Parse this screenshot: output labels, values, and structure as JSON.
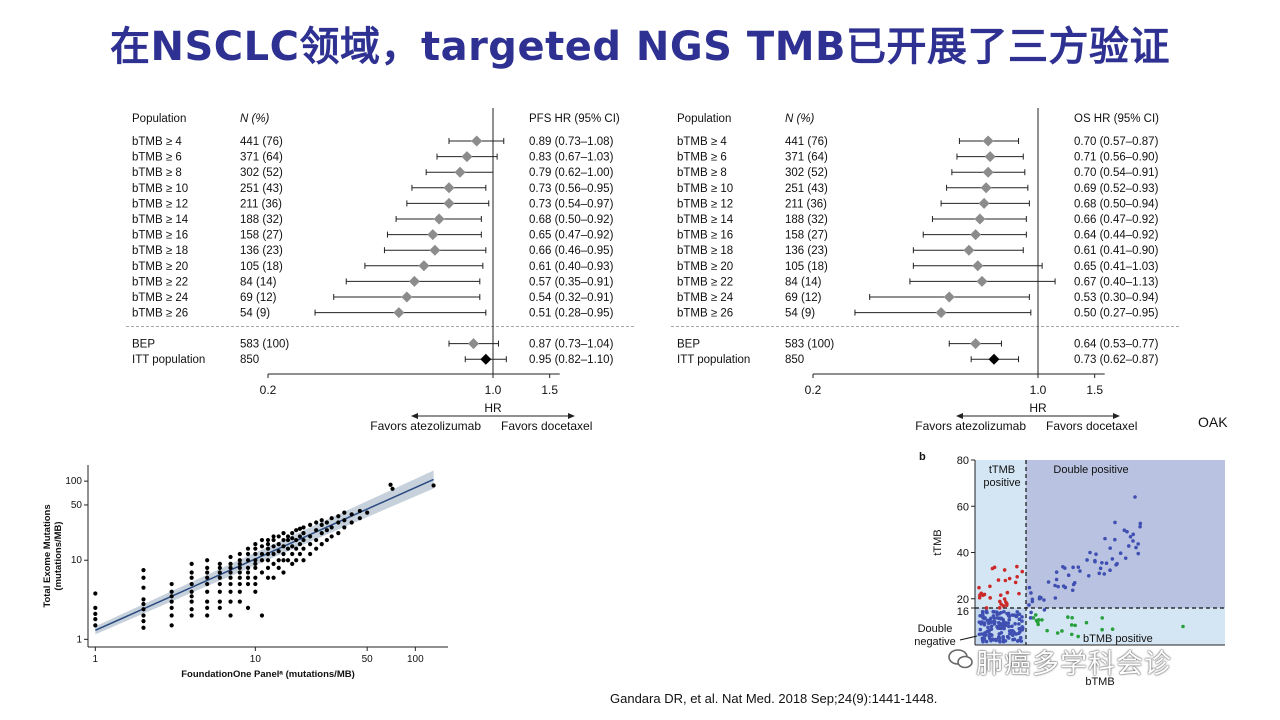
{
  "title": "在NSCLC领域，targeted NGS TMB已开展了三方验证",
  "forest_pfs": {
    "col_population": "Population",
    "col_n": "N (%)",
    "col_hr": "PFS HR (95% CI)",
    "rows": [
      {
        "label": "bTMB ≥ 4",
        "n": "441 (76)",
        "hr_text": "0.89 (0.73–1.08)",
        "hr": 0.89,
        "lo": 0.73,
        "hi": 1.08
      },
      {
        "label": "bTMB ≥ 6",
        "n": "371 (64)",
        "hr_text": "0.83 (0.67–1.03)",
        "hr": 0.83,
        "lo": 0.67,
        "hi": 1.03
      },
      {
        "label": "bTMB ≥ 8",
        "n": "302 (52)",
        "hr_text": "0.79 (0.62–1.00)",
        "hr": 0.79,
        "lo": 0.62,
        "hi": 1.0
      },
      {
        "label": "bTMB ≥ 10",
        "n": "251 (43)",
        "hr_text": "0.73 (0.56–0.95)",
        "hr": 0.73,
        "lo": 0.56,
        "hi": 0.95
      },
      {
        "label": "bTMB ≥ 12",
        "n": "211 (36)",
        "hr_text": "0.73 (0.54–0.97)",
        "hr": 0.73,
        "lo": 0.54,
        "hi": 0.97
      },
      {
        "label": "bTMB ≥ 14",
        "n": "188 (32)",
        "hr_text": "0.68 (0.50–0.92)",
        "hr": 0.68,
        "lo": 0.5,
        "hi": 0.92
      },
      {
        "label": "bTMB ≥ 16",
        "n": "158 (27)",
        "hr_text": "0.65 (0.47–0.92)",
        "hr": 0.65,
        "lo": 0.47,
        "hi": 0.92
      },
      {
        "label": "bTMB ≥ 18",
        "n": "136 (23)",
        "hr_text": "0.66 (0.46–0.95)",
        "hr": 0.66,
        "lo": 0.46,
        "hi": 0.95
      },
      {
        "label": "bTMB ≥ 20",
        "n": "105 (18)",
        "hr_text": "0.61 (0.40–0.93)",
        "hr": 0.61,
        "lo": 0.4,
        "hi": 0.93
      },
      {
        "label": "bTMB ≥ 22",
        "n": "84 (14)",
        "hr_text": "0.57 (0.35–0.91)",
        "hr": 0.57,
        "lo": 0.35,
        "hi": 0.91
      },
      {
        "label": "bTMB ≥ 24",
        "n": "69 (12)",
        "hr_text": "0.54 (0.32–0.91)",
        "hr": 0.54,
        "lo": 0.32,
        "hi": 0.91
      },
      {
        "label": "bTMB ≥ 26",
        "n": "54 (9)",
        "hr_text": "0.51 (0.28–0.95)",
        "hr": 0.51,
        "lo": 0.28,
        "hi": 0.95
      }
    ],
    "summary": [
      {
        "label": "BEP",
        "n": "583 (100)",
        "hr_text": "0.87 (0.73–1.04)",
        "hr": 0.87,
        "lo": 0.73,
        "hi": 1.04,
        "color": "#8c8c8c"
      },
      {
        "label": "ITT population",
        "n": "850",
        "hr_text": "0.95 (0.82–1.10)",
        "hr": 0.95,
        "lo": 0.82,
        "hi": 1.1,
        "color": "#000000"
      }
    ],
    "axis_ticks": [
      "0.2",
      "1.0",
      "1.5"
    ],
    "axis_label": "HR",
    "favors_left": "Favors atezolizumab",
    "favors_right": "Favors docetaxel"
  },
  "forest_os": {
    "col_population": "Population",
    "col_n": "N (%)",
    "col_hr": "OS HR (95% CI)",
    "rows": [
      {
        "label": "bTMB ≥ 4",
        "n": "441 (76)",
        "hr_text": "0.70 (0.57–0.87)",
        "hr": 0.7,
        "lo": 0.57,
        "hi": 0.87
      },
      {
        "label": "bTMB ≥ 6",
        "n": "371 (64)",
        "hr_text": "0.71 (0.56–0.90)",
        "hr": 0.71,
        "lo": 0.56,
        "hi": 0.9
      },
      {
        "label": "bTMB ≥ 8",
        "n": "302 (52)",
        "hr_text": "0.70 (0.54–0.91)",
        "hr": 0.7,
        "lo": 0.54,
        "hi": 0.91
      },
      {
        "label": "bTMB ≥ 10",
        "n": "251 (43)",
        "hr_text": "0.69 (0.52–0.93)",
        "hr": 0.69,
        "lo": 0.52,
        "hi": 0.93
      },
      {
        "label": "bTMB ≥ 12",
        "n": "211 (36)",
        "hr_text": "0.68 (0.50–0.94)",
        "hr": 0.68,
        "lo": 0.5,
        "hi": 0.94
      },
      {
        "label": "bTMB ≥ 14",
        "n": "188 (32)",
        "hr_text": "0.66 (0.47–0.92)",
        "hr": 0.66,
        "lo": 0.47,
        "hi": 0.92
      },
      {
        "label": "bTMB ≥ 16",
        "n": "158 (27)",
        "hr_text": "0.64 (0.44–0.92)",
        "hr": 0.64,
        "lo": 0.44,
        "hi": 0.92
      },
      {
        "label": "bTMB ≥ 18",
        "n": "136 (23)",
        "hr_text": "0.61 (0.41–0.90)",
        "hr": 0.61,
        "lo": 0.41,
        "hi": 0.9
      },
      {
        "label": "bTMB ≥ 20",
        "n": "105 (18)",
        "hr_text": "0.65 (0.41–1.03)",
        "hr": 0.65,
        "lo": 0.41,
        "hi": 1.03
      },
      {
        "label": "bTMB ≥ 22",
        "n": "84 (14)",
        "hr_text": "0.67 (0.40–1.13)",
        "hr": 0.67,
        "lo": 0.4,
        "hi": 1.13
      },
      {
        "label": "bTMB ≥ 24",
        "n": "69 (12)",
        "hr_text": "0.53 (0.30–0.94)",
        "hr": 0.53,
        "lo": 0.3,
        "hi": 0.94
      },
      {
        "label": "bTMB ≥ 26",
        "n": "54 (9)",
        "hr_text": "0.50 (0.27–0.95)",
        "hr": 0.5,
        "lo": 0.27,
        "hi": 0.95
      }
    ],
    "summary": [
      {
        "label": "BEP",
        "n": "583 (100)",
        "hr_text": "0.64 (0.53–0.77)",
        "hr": 0.64,
        "lo": 0.53,
        "hi": 0.77,
        "color": "#8c8c8c"
      },
      {
        "label": "ITT population",
        "n": "850",
        "hr_text": "0.73 (0.62–0.87)",
        "hr": 0.73,
        "lo": 0.62,
        "hi": 0.87,
        "color": "#000000"
      }
    ],
    "axis_ticks": [
      "0.2",
      "1.0",
      "1.5"
    ],
    "axis_label": "HR",
    "favors_left": "Favors atezolizumab",
    "favors_right": "Favors docetaxel"
  },
  "oak_label": "OAK",
  "chart_data": [
    {
      "type": "scatter",
      "xlabel": "FoundationOne Panelᵃ (mutations/MB)",
      "ylabel": "Total Exome Mutations",
      "ylabel2": "(mutations/MB)",
      "log_x": true,
      "log_y": true,
      "xlim": [
        0.9,
        160
      ],
      "ylim": [
        0.8,
        160
      ],
      "x_ticks": [
        "1",
        "10",
        "50",
        "100"
      ],
      "y_ticks": [
        "1",
        "10",
        "50",
        "100"
      ],
      "fit_line": [
        [
          1,
          1.3
        ],
        [
          130,
          105
        ]
      ],
      "points": [
        [
          1,
          1.5
        ],
        [
          1,
          1.8
        ],
        [
          1,
          2.1
        ],
        [
          1,
          2.5
        ],
        [
          1,
          3.8
        ],
        [
          2,
          1.4
        ],
        [
          2,
          1.7
        ],
        [
          2,
          2
        ],
        [
          2,
          2.4
        ],
        [
          2,
          2.8
        ],
        [
          2,
          3.2
        ],
        [
          2,
          4.5
        ],
        [
          2,
          6
        ],
        [
          2,
          7.5
        ],
        [
          3,
          1.5
        ],
        [
          3,
          2
        ],
        [
          3,
          2.5
        ],
        [
          3,
          3
        ],
        [
          3,
          3.5
        ],
        [
          3,
          4
        ],
        [
          3,
          5
        ],
        [
          4,
          2
        ],
        [
          4,
          2.4
        ],
        [
          4,
          3
        ],
        [
          4,
          3.5
        ],
        [
          4,
          4
        ],
        [
          4,
          5
        ],
        [
          4,
          6
        ],
        [
          4,
          7
        ],
        [
          4,
          9
        ],
        [
          5,
          2
        ],
        [
          5,
          2.5
        ],
        [
          5,
          3
        ],
        [
          5,
          4
        ],
        [
          5,
          5
        ],
        [
          5,
          6
        ],
        [
          5,
          7
        ],
        [
          5,
          8
        ],
        [
          5,
          10
        ],
        [
          6,
          2.5
        ],
        [
          6,
          3
        ],
        [
          6,
          4
        ],
        [
          6,
          5
        ],
        [
          6,
          6
        ],
        [
          6,
          7
        ],
        [
          6,
          8
        ],
        [
          6,
          9
        ],
        [
          7,
          2
        ],
        [
          7,
          3
        ],
        [
          7,
          4
        ],
        [
          7,
          5
        ],
        [
          7,
          6
        ],
        [
          7,
          7
        ],
        [
          7,
          8
        ],
        [
          7,
          9
        ],
        [
          7,
          11
        ],
        [
          8,
          3
        ],
        [
          8,
          4
        ],
        [
          8,
          5
        ],
        [
          8,
          6
        ],
        [
          8,
          7
        ],
        [
          8,
          8
        ],
        [
          8,
          9
        ],
        [
          8,
          10
        ],
        [
          8,
          12
        ],
        [
          9,
          2.5
        ],
        [
          9,
          5
        ],
        [
          9,
          6
        ],
        [
          9,
          7
        ],
        [
          9,
          8
        ],
        [
          9,
          10
        ],
        [
          9,
          12
        ],
        [
          9,
          14
        ],
        [
          10,
          4
        ],
        [
          10,
          5
        ],
        [
          10,
          6
        ],
        [
          10,
          8
        ],
        [
          10,
          9
        ],
        [
          10,
          10
        ],
        [
          10,
          12
        ],
        [
          10,
          14
        ],
        [
          10,
          16
        ],
        [
          11,
          2
        ],
        [
          11,
          7
        ],
        [
          11,
          10
        ],
        [
          11,
          12
        ],
        [
          11,
          15
        ],
        [
          11,
          18
        ],
        [
          12,
          6
        ],
        [
          12,
          8
        ],
        [
          12,
          10
        ],
        [
          12,
          12
        ],
        [
          12,
          14
        ],
        [
          12,
          16
        ],
        [
          12,
          18
        ],
        [
          13,
          6
        ],
        [
          13,
          9
        ],
        [
          13,
          12
        ],
        [
          13,
          15
        ],
        [
          13,
          18
        ],
        [
          13,
          20
        ],
        [
          14,
          8
        ],
        [
          14,
          10
        ],
        [
          14,
          13
        ],
        [
          14,
          16
        ],
        [
          14,
          20
        ],
        [
          15,
          7
        ],
        [
          15,
          10
        ],
        [
          15,
          12
        ],
        [
          15,
          15
        ],
        [
          15,
          18
        ],
        [
          15,
          22
        ],
        [
          16,
          10
        ],
        [
          16,
          14
        ],
        [
          16,
          18
        ],
        [
          16,
          20
        ],
        [
          17,
          9
        ],
        [
          17,
          12
        ],
        [
          17,
          15
        ],
        [
          17,
          19
        ],
        [
          17,
          22
        ],
        [
          18,
          10
        ],
        [
          18,
          14
        ],
        [
          18,
          18
        ],
        [
          18,
          24
        ],
        [
          19,
          12
        ],
        [
          19,
          16
        ],
        [
          19,
          20
        ],
        [
          19,
          25
        ],
        [
          20,
          10
        ],
        [
          20,
          14
        ],
        [
          20,
          18
        ],
        [
          20,
          22
        ],
        [
          20,
          26
        ],
        [
          22,
          12
        ],
        [
          22,
          16
        ],
        [
          22,
          20
        ],
        [
          22,
          28
        ],
        [
          24,
          14
        ],
        [
          24,
          18
        ],
        [
          24,
          24
        ],
        [
          24,
          30
        ],
        [
          26,
          16
        ],
        [
          26,
          22
        ],
        [
          26,
          28
        ],
        [
          26,
          32
        ],
        [
          28,
          18
        ],
        [
          28,
          24
        ],
        [
          28,
          30
        ],
        [
          30,
          20
        ],
        [
          30,
          26
        ],
        [
          30,
          34
        ],
        [
          33,
          22
        ],
        [
          33,
          30
        ],
        [
          33,
          36
        ],
        [
          36,
          26
        ],
        [
          36,
          32
        ],
        [
          36,
          40
        ],
        [
          40,
          30
        ],
        [
          40,
          38
        ],
        [
          45,
          34
        ],
        [
          45,
          42
        ],
        [
          50,
          40
        ],
        [
          70,
          90
        ],
        [
          72,
          80
        ],
        [
          130,
          88
        ]
      ]
    },
    {
      "type": "scatter",
      "panel_label": "b",
      "xlabel": "bTMB",
      "ylabel": "tTMB",
      "ylim": [
        0,
        80
      ],
      "y_ticks": [
        "16",
        "20",
        "40",
        "60",
        "80"
      ],
      "threshold_x": 16,
      "threshold_y": 16,
      "quadrants": {
        "tl": "tTMB",
        "tl2": "positive",
        "tr": "Double positive",
        "bl": "Double",
        "bl2": "negative",
        "br": "bTMB positive"
      },
      "colors": {
        "double_positive_bg": "#b9c3e1",
        "single_positive_bg": "#d4e6f4",
        "blue_points": "#3f4fb2",
        "red_points": "#cc2a2a",
        "green_points": "#27a03c"
      },
      "watermark": "肺癌多学科会诊"
    }
  ],
  "citation": "Gandara DR, et al. Nat Med. 2018 Sep;24(9):1441-1448."
}
